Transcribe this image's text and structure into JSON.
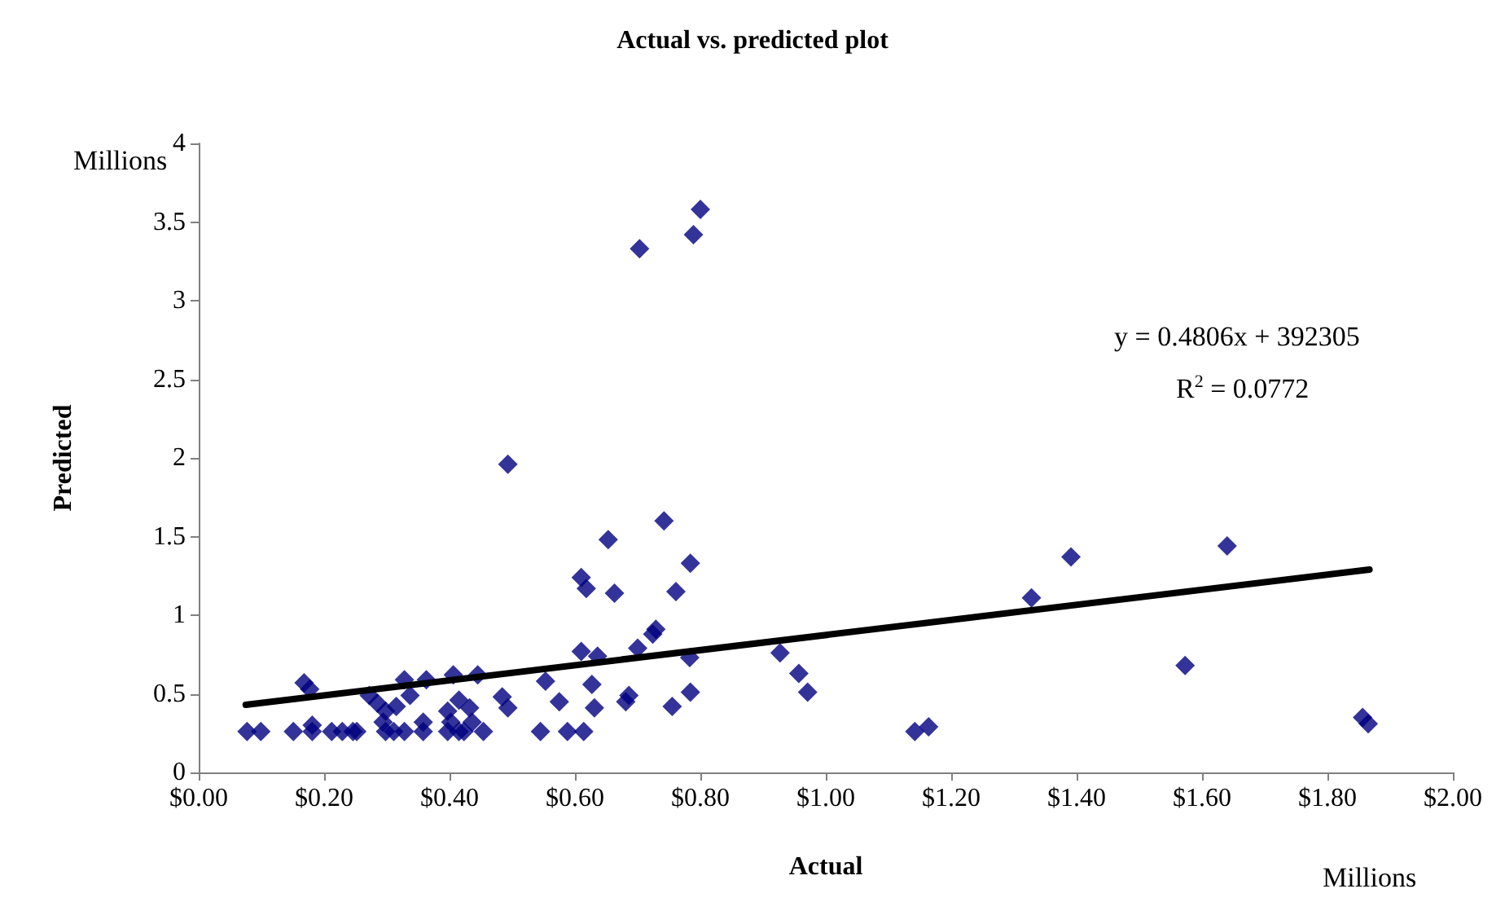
{
  "chart_data": {
    "type": "scatter",
    "title": "Actual vs. predicted plot",
    "xlabel": "Actual",
    "ylabel": "Predicted",
    "annotations": [
      "Millions",
      "Millions",
      "y = 0.4806x + 392305",
      "R$^{2}$ = 0.0772"
    ],
    "marker": "diamond",
    "grid": false,
    "xlim": [
      0,
      2
    ],
    "ylim": [
      0,
      4
    ],
    "xticks": [
      {
        "value": 0,
        "label": "$0.00"
      },
      {
        "value": 0.2,
        "label": "$0.20"
      },
      {
        "value": 0.4,
        "label": "$0.40"
      },
      {
        "value": 0.6,
        "label": "$0.60"
      },
      {
        "value": 0.8,
        "label": "$0.80"
      },
      {
        "value": 1,
        "label": "$1.00"
      },
      {
        "value": 1.2,
        "label": "$1.20"
      },
      {
        "value": 1.4,
        "label": "$1.40"
      },
      {
        "value": 1.6,
        "label": "$1.60"
      },
      {
        "value": 1.8,
        "label": "$1.80"
      },
      {
        "value": 2,
        "label": "$2.00"
      }
    ],
    "yticks": [
      0,
      0.5,
      1,
      1.5,
      2,
      2.5,
      3,
      3.5,
      4
    ],
    "series": [
      {
        "color": "#000080",
        "x": [
          0.077,
          0.099,
          0.151,
          0.181,
          0.212,
          0.229,
          0.246,
          0.252,
          0.298,
          0.311,
          0.328,
          0.358,
          0.397,
          0.415,
          0.423,
          0.454,
          0.545,
          0.588,
          0.614,
          0.168,
          0.177,
          0.181,
          0.272,
          0.285,
          0.298,
          0.315,
          0.294,
          0.328,
          0.337,
          0.363,
          0.358,
          0.406,
          0.445,
          0.397,
          0.415,
          0.432,
          0.402,
          0.436,
          0.493,
          0.484,
          0.493,
          0.553,
          0.575,
          0.61,
          0.618,
          0.61,
          0.636,
          0.627,
          0.631,
          0.653,
          0.703,
          0.789,
          0.8,
          0.742,
          0.784,
          0.663,
          0.761,
          0.729,
          0.724,
          0.7,
          0.783,
          0.927,
          0.957,
          0.971,
          0.686,
          0.681,
          0.755,
          0.784,
          1.142,
          1.164,
          1.328,
          1.391,
          1.64,
          1.573,
          1.856,
          1.865
        ],
        "values": [
          0.26,
          0.26,
          0.26,
          0.26,
          0.26,
          0.26,
          0.26,
          0.26,
          0.26,
          0.26,
          0.26,
          0.26,
          0.26,
          0.26,
          0.26,
          0.26,
          0.26,
          0.26,
          0.26,
          0.57,
          0.53,
          0.3,
          0.49,
          0.44,
          0.39,
          0.42,
          0.32,
          0.59,
          0.49,
          0.59,
          0.32,
          0.62,
          0.62,
          0.39,
          0.46,
          0.41,
          0.32,
          0.32,
          1.96,
          0.48,
          0.41,
          0.58,
          0.45,
          1.24,
          1.17,
          0.77,
          0.74,
          0.56,
          0.41,
          1.48,
          3.33,
          3.42,
          3.58,
          1.6,
          1.33,
          1.14,
          1.15,
          0.91,
          0.88,
          0.79,
          0.73,
          0.76,
          0.63,
          0.51,
          0.49,
          0.45,
          0.42,
          0.51,
          0.26,
          0.29,
          1.11,
          1.37,
          1.44,
          0.68,
          0.35,
          0.31
        ]
      },
      {
        "type": "line",
        "color": "#000000",
        "marker": "none",
        "x": [
          0.075,
          1.867
        ],
        "values": [
          0.43,
          1.29
        ]
      }
    ]
  }
}
